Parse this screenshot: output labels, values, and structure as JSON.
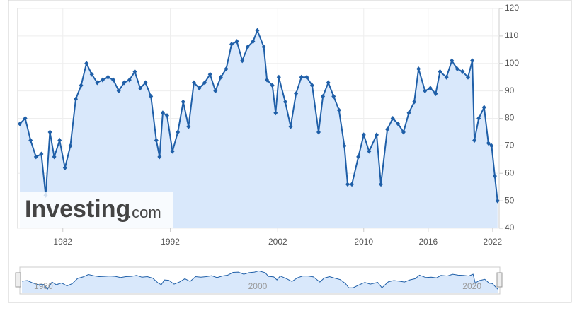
{
  "chart_data": {
    "type": "line",
    "x": [
      1978.0,
      1978.5,
      1979.0,
      1979.5,
      1980.0,
      1980.4,
      1980.8,
      1981.2,
      1981.7,
      1982.2,
      1982.7,
      1983.2,
      1983.7,
      1984.2,
      1984.7,
      1985.2,
      1985.7,
      1986.2,
      1986.7,
      1987.2,
      1987.7,
      1988.2,
      1988.7,
      1989.2,
      1989.7,
      1990.2,
      1990.7,
      1991.0,
      1991.3,
      1991.7,
      1992.2,
      1992.7,
      1993.2,
      1993.7,
      1994.2,
      1994.7,
      1995.2,
      1995.7,
      1996.2,
      1996.7,
      1997.2,
      1997.7,
      1998.2,
      1998.7,
      1999.2,
      1999.7,
      2000.1,
      2000.7,
      2001.0,
      2001.5,
      2001.8,
      2002.1,
      2002.7,
      2003.2,
      2003.7,
      2004.2,
      2004.7,
      2005.2,
      2005.8,
      2006.2,
      2006.7,
      2007.2,
      2007.7,
      2008.2,
      2008.5,
      2008.9,
      2009.5,
      2010.0,
      2010.5,
      2011.2,
      2011.6,
      2012.2,
      2012.7,
      2013.2,
      2013.7,
      2014.2,
      2014.7,
      2015.1,
      2015.7,
      2016.2,
      2016.7,
      2017.1,
      2017.7,
      2018.2,
      2018.7,
      2019.2,
      2019.7,
      2020.1,
      2020.3,
      2020.7,
      2021.2,
      2021.6,
      2021.9,
      2022.2,
      2022.45
    ],
    "series": [
      {
        "color": "#1f5fa8",
        "values": [
          78,
          80,
          72,
          66,
          67,
          52,
          75,
          66,
          72,
          62,
          70,
          87,
          92,
          100,
          96,
          93,
          94,
          95,
          94,
          90,
          93,
          94,
          97,
          91,
          93,
          88,
          72,
          66,
          82,
          81,
          68,
          75,
          86,
          77,
          93,
          91,
          93,
          96,
          90,
          95,
          98,
          107,
          108,
          101,
          106,
          108,
          112,
          106,
          94,
          92,
          82,
          95,
          86,
          77,
          89,
          95,
          95,
          92,
          75,
          88,
          93,
          88,
          83,
          70,
          56,
          56,
          66,
          74,
          68,
          74,
          56,
          76,
          80,
          78,
          75,
          82,
          86,
          98,
          90,
          91,
          89,
          97,
          95,
          101,
          98,
          97,
          95,
          101,
          72,
          80,
          84,
          71,
          70,
          59,
          50
        ]
      }
    ],
    "xlim": [
      1977.8,
      2022.6
    ],
    "xticks": [
      1982,
      1992,
      2002,
      2010,
      2016,
      2022
    ],
    "ylim": [
      40,
      120
    ],
    "yticks": [
      40,
      50,
      60,
      70,
      80,
      90,
      100,
      110,
      120
    ],
    "navigator_xticks": [
      1980,
      2000,
      2020
    ],
    "watermark": {
      "brand": "Investing",
      "suffix": ".com"
    },
    "grid": true,
    "fill_color": "#d9e8fb"
  }
}
